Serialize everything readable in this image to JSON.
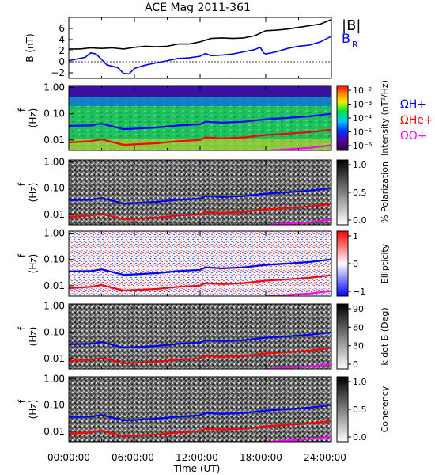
{
  "chart_data": {
    "type": "line",
    "title": "ACE Mag 2011-361",
    "xlabel": "Time (UT)",
    "x_ticks": [
      "00:00:00",
      "06:00:00",
      "12:00:00",
      "18:00:00",
      "24:00:00"
    ],
    "xlim_hours": [
      0,
      24
    ],
    "colors": {
      "total": "#000000",
      "br": "#0000ff",
      "h": "#0000ff",
      "he": "#ff0000",
      "o": "#ff00ff"
    },
    "panels": [
      {
        "kind": "line",
        "ylabel": "B (nT)",
        "ylim": [
          -3,
          8
        ],
        "y_ticks": [
          "6",
          "4",
          "2",
          "0",
          "−2"
        ],
        "y_tick_values": [
          6,
          4,
          2,
          0,
          -2
        ],
        "legend": [
          "|B|",
          "B",
          "R"
        ],
        "series": [
          {
            "name": "|B|",
            "key": "total",
            "x": [
              0,
              1,
              2,
              3,
              4,
              5,
              6,
              7,
              8,
              9,
              10,
              11,
              12,
              13,
              14,
              15,
              16,
              17,
              18,
              19,
              20,
              21,
              22,
              23,
              24
            ],
            "y": [
              2.3,
              2.3,
              2.5,
              2.4,
              2.5,
              2.3,
              2.6,
              2.8,
              2.7,
              2.8,
              3.2,
              3.2,
              3.6,
              4.2,
              4.3,
              4.2,
              4.3,
              4.7,
              5.6,
              5.7,
              5.9,
              6.2,
              6.5,
              6.8,
              7.6
            ]
          },
          {
            "name": "B_R",
            "key": "br",
            "x": [
              0,
              1,
              1.5,
              2,
              2.5,
              3,
              3.5,
              4,
              4.5,
              5,
              5.5,
              6,
              7,
              8,
              9,
              10,
              11,
              12,
              12.5,
              13,
              14,
              15,
              16,
              17,
              17.5,
              17.8,
              18,
              19,
              20,
              21,
              22,
              23,
              24
            ],
            "y": [
              0.2,
              0.6,
              0.8,
              1.6,
              1.4,
              0.4,
              -0.6,
              -0.8,
              -1.1,
              -2.1,
              -2.2,
              -1.2,
              -0.6,
              -0.2,
              0.2,
              0.6,
              0.7,
              1.0,
              1.5,
              1.1,
              1.2,
              1.4,
              1.8,
              2.2,
              2.6,
              1.6,
              1.4,
              1.8,
              2.4,
              2.8,
              3.0,
              3.6,
              4.6
            ]
          }
        ]
      },
      {
        "kind": "spectrogram",
        "colormap": "rainbow",
        "ylabel": "f (Hz)",
        "y_ticks": [
          "1.00",
          "0.10",
          "0.01"
        ],
        "colorbar_label": "Intensity (nT²/Hz)",
        "colorbar_ticks": [
          "10⁻²",
          "10⁻³",
          "10⁻⁴",
          "10⁻⁵",
          "10⁻⁶"
        ],
        "legend": [
          "ΩH+",
          "ΩHe+",
          "ΩO+"
        ]
      },
      {
        "kind": "spectrogram",
        "colormap": "gray",
        "ylabel": "f (Hz)",
        "y_ticks": [
          "1.00",
          "0.10",
          "0.01"
        ],
        "colorbar_label": "% Polarization",
        "colorbar_ticks": [
          "1.0",
          "0.5",
          "0.0"
        ]
      },
      {
        "kind": "spectrogram",
        "colormap": "bwr",
        "ylabel": "f (Hz)",
        "y_ticks": [
          "1.00",
          "0.10",
          "0.01"
        ],
        "colorbar_label": "Ellipticity",
        "colorbar_ticks": [
          "1",
          "0",
          "−1"
        ]
      },
      {
        "kind": "spectrogram",
        "colormap": "gray",
        "ylabel": "f (Hz)",
        "y_ticks": [
          "1.00",
          "0.10",
          "0.01"
        ],
        "colorbar_label": "k dot B (Deg)",
        "colorbar_ticks": [
          "90",
          "60",
          "30",
          "0"
        ]
      },
      {
        "kind": "spectrogram",
        "colormap": "gray",
        "ylabel": "f (Hz)",
        "y_ticks": [
          "1.00",
          "0.10",
          "0.01"
        ],
        "colorbar_label": "Coherency",
        "colorbar_ticks": [
          "1.0",
          "0.5",
          "0.0"
        ]
      }
    ],
    "gyrofrequency_lines": {
      "ylim_hz": [
        0.004,
        1.2
      ],
      "x": [
        0,
        2,
        3,
        5,
        6,
        8,
        10,
        12,
        12.5,
        14,
        16,
        18,
        20,
        22,
        24
      ],
      "H+": [
        0.035,
        0.036,
        0.042,
        0.026,
        0.027,
        0.03,
        0.036,
        0.04,
        0.05,
        0.046,
        0.05,
        0.062,
        0.07,
        0.08,
        0.1
      ],
      "He+": [
        0.008,
        0.009,
        0.0105,
        0.0065,
        0.0068,
        0.0075,
        0.009,
        0.01,
        0.0125,
        0.0115,
        0.0125,
        0.0155,
        0.0175,
        0.02,
        0.025
      ],
      "O+": [
        0.002,
        0.0022,
        0.0026,
        0.0016,
        0.0017,
        0.0019,
        0.0022,
        0.0025,
        0.0031,
        0.0029,
        0.0031,
        0.0039,
        0.0044,
        0.005,
        0.0063
      ]
    }
  }
}
